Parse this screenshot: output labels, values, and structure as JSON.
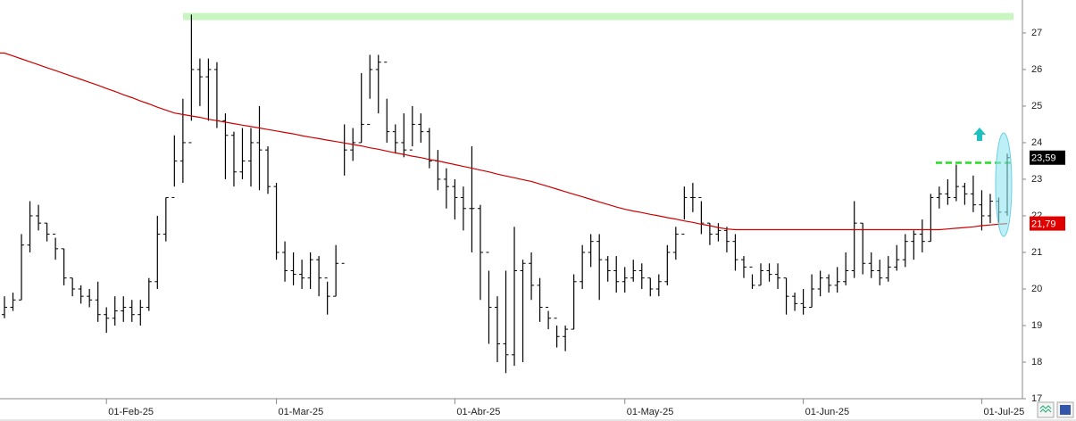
{
  "chart_data": {
    "type": "ohlc",
    "categories": [
      null,
      null,
      null,
      null,
      null,
      null,
      null,
      null,
      null,
      null,
      null,
      null,
      "01-Feb-25",
      null,
      null,
      null,
      null,
      null,
      null,
      null,
      null,
      null,
      null,
      null,
      null,
      null,
      null,
      null,
      null,
      null,
      null,
      null,
      "01-Mar-25",
      null,
      null,
      null,
      null,
      null,
      null,
      null,
      null,
      null,
      null,
      null,
      null,
      null,
      null,
      null,
      null,
      null,
      null,
      null,
      null,
      "01-Abr-25",
      null,
      null,
      null,
      null,
      null,
      null,
      null,
      null,
      null,
      null,
      null,
      null,
      null,
      null,
      null,
      null,
      null,
      null,
      null,
      "01-May-25",
      null,
      null,
      null,
      null,
      null,
      null,
      null,
      null,
      null,
      null,
      null,
      null,
      null,
      null,
      null,
      null,
      null,
      null,
      null,
      null,
      "01-Jun-25",
      null,
      null,
      null,
      null,
      null,
      null,
      null,
      null,
      null,
      null,
      null,
      null,
      null,
      null,
      null,
      null,
      null,
      null,
      null,
      null,
      "01-Jul-25",
      null,
      null,
      null
    ],
    "ohlc": {
      "color": "#000000",
      "open": [
        19.3,
        19.5,
        19.7,
        21.2,
        22.0,
        21.8,
        21.5,
        21.1,
        20.3,
        20.0,
        19.8,
        19.7,
        19.3,
        19.2,
        19.4,
        19.5,
        19.3,
        19.5,
        20.2,
        21.5,
        22.5,
        23.5,
        24.0,
        26.0,
        25.8,
        26.0,
        24.6,
        24.2,
        23.2,
        23.5,
        24.0,
        23.8,
        22.8,
        21.0,
        20.5,
        20.4,
        20.3,
        20.8,
        20.3,
        19.8,
        20.7,
        23.8,
        24.0,
        24.5,
        26.0,
        26.2,
        24.3,
        24.0,
        23.8,
        24.5,
        24.3,
        23.5,
        23.0,
        22.8,
        22.5,
        22.2,
        22.2,
        21.0,
        19.5,
        18.5,
        18.2,
        20.5,
        20.7,
        20.1,
        19.5,
        19.2,
        18.7,
        18.9,
        20.2,
        21.0,
        21.3,
        20.8,
        20.5,
        20.2,
        20.3,
        20.5,
        20.3,
        20.0,
        20.2,
        21.0,
        21.5,
        22.5,
        22.5,
        21.8,
        21.5,
        21.6,
        21.3,
        20.8,
        20.6,
        20.1,
        20.5,
        20.4,
        20.3,
        19.8,
        19.6,
        19.5,
        20.0,
        20.3,
        20.1,
        20.2,
        20.5,
        21.8,
        20.7,
        20.5,
        20.3,
        20.6,
        20.8,
        21.3,
        21.5,
        21.3,
        22.5,
        22.6,
        22.5,
        22.8,
        22.6,
        22.3,
        22.0,
        22.4,
        22.1
      ],
      "high": [
        19.8,
        19.9,
        21.5,
        22.4,
        22.3,
        21.8,
        21.4,
        21.1,
        20.3,
        20.1,
        20.0,
        20.2,
        19.5,
        19.8,
        19.8,
        19.7,
        19.7,
        20.3,
        22.0,
        22.5,
        24.2,
        25.2,
        27.5,
        26.3,
        26.3,
        26.2,
        24.8,
        24.3,
        24.4,
        24.4,
        25.0,
        23.9,
        22.9,
        21.3,
        21.0,
        20.8,
        21.0,
        20.9,
        20.2,
        21.2,
        24.5,
        24.4,
        25.9,
        26.4,
        26.4,
        25.2,
        24.5,
        24.8,
        25.0,
        24.8,
        24.4,
        23.8,
        23.3,
        23.0,
        22.8,
        23.9,
        22.3,
        20.5,
        19.8,
        20.5,
        21.7,
        20.8,
        21.0,
        20.3,
        19.4,
        19.0,
        19.0,
        20.4,
        21.2,
        21.5,
        21.5,
        20.9,
        20.9,
        20.6,
        20.8,
        20.7,
        20.3,
        20.4,
        21.2,
        21.7,
        22.8,
        22.9,
        22.4,
        21.8,
        21.8,
        21.7,
        21.5,
        20.9,
        20.4,
        20.7,
        20.7,
        20.7,
        20.3,
        19.9,
        20.0,
        20.4,
        20.5,
        20.4,
        20.6,
        21.0,
        22.4,
        21.8,
        21.0,
        20.8,
        20.9,
        21.2,
        21.5,
        21.6,
        21.9,
        22.6,
        22.8,
        23.0,
        23.4,
        22.9,
        23.1,
        22.7,
        22.6,
        22.5,
        23.7
      ],
      "low": [
        19.2,
        19.4,
        19.7,
        21.0,
        21.6,
        21.3,
        20.8,
        20.1,
        19.8,
        19.6,
        19.5,
        19.1,
        18.8,
        19.0,
        19.1,
        19.1,
        19.0,
        19.4,
        20.0,
        21.3,
        22.8,
        22.9,
        24.6,
        25.0,
        24.6,
        24.4,
        23.0,
        22.8,
        23.0,
        22.8,
        22.7,
        22.6,
        20.8,
        20.2,
        20.1,
        20.0,
        20.0,
        19.8,
        19.3,
        19.8,
        23.1,
        23.5,
        24.0,
        25.2,
        24.8,
        24.0,
        23.7,
        23.6,
        23.9,
        24.0,
        23.3,
        22.7,
        22.2,
        21.9,
        21.6,
        21.0,
        19.7,
        18.5,
        18.0,
        17.7,
        17.9,
        18.0,
        19.7,
        19.1,
        18.9,
        18.4,
        18.3,
        18.9,
        20.0,
        20.6,
        19.7,
        20.2,
        19.9,
        19.9,
        20.2,
        20.0,
        19.8,
        19.8,
        20.1,
        20.8,
        21.9,
        22.1,
        21.5,
        21.2,
        21.3,
        21.0,
        20.5,
        20.3,
        20.0,
        20.1,
        20.2,
        20.0,
        19.3,
        19.4,
        19.3,
        19.5,
        19.8,
        19.9,
        19.9,
        20.1,
        20.3,
        20.4,
        20.3,
        20.1,
        20.2,
        20.5,
        20.6,
        20.8,
        21.0,
        21.3,
        22.2,
        22.3,
        22.4,
        22.3,
        22.1,
        21.6,
        21.8,
        21.8,
        22.0
      ],
      "close": [
        19.5,
        19.7,
        21.2,
        22.0,
        21.8,
        21.5,
        21.1,
        20.3,
        20.0,
        19.8,
        19.7,
        19.3,
        19.2,
        19.4,
        19.5,
        19.3,
        19.5,
        20.2,
        21.5,
        22.5,
        23.5,
        24.0,
        26.0,
        25.8,
        26.0,
        24.6,
        24.2,
        23.2,
        23.5,
        24.0,
        23.8,
        22.8,
        21.0,
        20.5,
        20.4,
        20.3,
        20.8,
        20.3,
        19.8,
        20.7,
        23.8,
        24.0,
        24.5,
        26.0,
        26.2,
        24.3,
        24.0,
        23.8,
        24.5,
        24.3,
        23.5,
        23.0,
        22.8,
        22.5,
        22.2,
        22.2,
        21.0,
        19.5,
        18.5,
        18.2,
        20.5,
        20.7,
        20.1,
        19.5,
        19.2,
        18.7,
        18.9,
        20.2,
        21.0,
        21.3,
        20.8,
        20.5,
        20.2,
        20.3,
        20.5,
        20.3,
        20.0,
        20.2,
        21.0,
        21.5,
        22.5,
        22.5,
        21.8,
        21.5,
        21.6,
        21.3,
        20.8,
        20.6,
        20.1,
        20.5,
        20.4,
        20.3,
        19.8,
        19.6,
        19.5,
        20.0,
        20.3,
        20.1,
        20.2,
        20.5,
        21.8,
        20.7,
        20.5,
        20.3,
        20.6,
        20.8,
        21.3,
        21.5,
        21.3,
        22.5,
        22.6,
        22.5,
        22.8,
        22.6,
        22.3,
        22.0,
        22.4,
        22.1,
        23.59
      ]
    },
    "moving_average": {
      "color": "#cc0000",
      "values": [
        26.45,
        26.37,
        26.29,
        26.21,
        26.13,
        26.05,
        25.97,
        25.89,
        25.81,
        25.73,
        25.65,
        25.57,
        25.48,
        25.4,
        25.31,
        25.23,
        25.14,
        25.06,
        24.97,
        24.89,
        24.81,
        24.77,
        24.73,
        24.69,
        24.64,
        24.6,
        24.56,
        24.52,
        24.48,
        24.44,
        24.4,
        24.36,
        24.32,
        24.28,
        24.24,
        24.19,
        24.15,
        24.11,
        24.07,
        24.03,
        23.99,
        23.95,
        23.91,
        23.86,
        23.82,
        23.77,
        23.72,
        23.68,
        23.63,
        23.59,
        23.54,
        23.5,
        23.45,
        23.4,
        23.35,
        23.3,
        23.25,
        23.2,
        23.14,
        23.09,
        23.04,
        22.99,
        22.94,
        22.87,
        22.8,
        22.73,
        22.66,
        22.59,
        22.52,
        22.45,
        22.38,
        22.31,
        22.24,
        22.18,
        22.13,
        22.09,
        22.04,
        22.0,
        21.95,
        21.91,
        21.86,
        21.82,
        21.77,
        21.73,
        21.68,
        21.64,
        21.62,
        21.62,
        21.62,
        21.62,
        21.62,
        21.62,
        21.62,
        21.62,
        21.62,
        21.62,
        21.62,
        21.62,
        21.62,
        21.62,
        21.62,
        21.62,
        21.62,
        21.62,
        21.62,
        21.62,
        21.62,
        21.62,
        21.62,
        21.62,
        21.62,
        21.64,
        21.66,
        21.68,
        21.7,
        21.73,
        21.75,
        21.77,
        21.79
      ]
    },
    "levels": [
      {
        "value": 27.45,
        "color": "#c8f5c0",
        "style": "band"
      },
      {
        "value": 23.45,
        "color": "#22dd22",
        "style": "dashed"
      }
    ],
    "price_tags": [
      {
        "value": 23.59,
        "label": "23,59",
        "color": "#000000"
      },
      {
        "value": 21.79,
        "label": "21,79",
        "color": "#e00000"
      }
    ],
    "ylim": [
      17,
      27.9
    ],
    "yticks": [
      17,
      18,
      19,
      20,
      21,
      22,
      23,
      24,
      25,
      26,
      27
    ]
  }
}
